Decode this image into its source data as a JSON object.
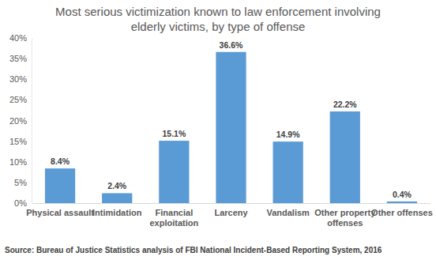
{
  "chart_data": {
    "type": "bar",
    "title": [
      "Most serious victimization known to law enforcement involving",
      "elderly victims, by type of offense"
    ],
    "categories": [
      "Physical assault",
      "Intimidation",
      "Financial exploitation",
      "Larceny",
      "Vandalism",
      "Other property offenses",
      "Other offenses"
    ],
    "values": [
      8.4,
      2.4,
      15.1,
      36.6,
      14.9,
      22.2,
      0.4
    ],
    "value_labels": [
      "8.4%",
      "2.4%",
      "15.1%",
      "36.6%",
      "14.9%",
      "22.2%",
      "0.4%"
    ],
    "data_labels": true,
    "color": "#5b9bd5",
    "ylim": [
      0,
      40
    ],
    "yticks": [
      {
        "value": 0,
        "label": "0%"
      },
      {
        "value": 5,
        "label": "5%"
      },
      {
        "value": 10,
        "label": "10%"
      },
      {
        "value": 15,
        "label": "15%"
      },
      {
        "value": 20,
        "label": "20%"
      },
      {
        "value": 25,
        "label": "25%"
      },
      {
        "value": 30,
        "label": "30%"
      },
      {
        "value": 35,
        "label": "35%"
      },
      {
        "value": 40,
        "label": "40%"
      }
    ],
    "grid": false,
    "source": "Source: Bureau of Justice Statistics analysis of FBI National Incident-Based Reporting System, 2016"
  }
}
